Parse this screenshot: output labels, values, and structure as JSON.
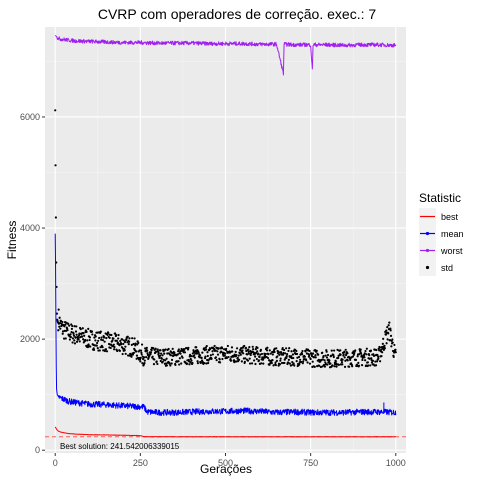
{
  "chart_data": {
    "type": "line",
    "title": "CVRP com operadores de correção. exec.: 7",
    "xlabel": "Gerações",
    "ylabel": "Fitness",
    "xlim": [
      -30,
      1030
    ],
    "ylim": [
      -50,
      7620
    ],
    "x_ticks": [
      0,
      250,
      500,
      750,
      1000
    ],
    "x_tick_labels": [
      "0",
      "250",
      "500",
      "750",
      "1000"
    ],
    "y_ticks": [
      0,
      2000,
      4000,
      6000
    ],
    "y_tick_labels": [
      "0",
      "2000",
      "4000",
      "6000"
    ],
    "grid": true,
    "legend": {
      "title": "Statistic",
      "position": "right",
      "entries": [
        {
          "label": "best",
          "color": "#ff0000",
          "shape": "line"
        },
        {
          "label": "mean",
          "color": "#0000ff",
          "shape": "line-point"
        },
        {
          "label": "worst",
          "color": "#a020f0",
          "shape": "line-point"
        },
        {
          "label": "std",
          "color": "#000000",
          "shape": "point"
        }
      ]
    },
    "annotation": "Best solution: 241.542006339015",
    "reference_line": {
      "y": 241.542006339015,
      "color": "#ff0000",
      "style": "dashed"
    },
    "series": [
      {
        "name": "best",
        "color": "#ff0000",
        "x": [
          0,
          5,
          10,
          20,
          40,
          60,
          100,
          150,
          200,
          250,
          260,
          300,
          400,
          500,
          600,
          700,
          800,
          900,
          1000
        ],
        "values": [
          420,
          370,
          340,
          320,
          300,
          290,
          280,
          275,
          270,
          262,
          245,
          243,
          242,
          242,
          242,
          242,
          242,
          242,
          242
        ]
      },
      {
        "name": "mean",
        "color": "#0000ff",
        "x": [
          0,
          1,
          2,
          3,
          4,
          6,
          10,
          20,
          40,
          60,
          100,
          150,
          200,
          230,
          260,
          270,
          300,
          350,
          400,
          450,
          500,
          550,
          600,
          650,
          700,
          750,
          800,
          850,
          900,
          950,
          1000
        ],
        "values": [
          3900,
          3300,
          2300,
          1500,
          1100,
          1000,
          960,
          930,
          880,
          860,
          830,
          820,
          800,
          790,
          780,
          690,
          680,
          680,
          690,
          700,
          700,
          710,
          700,
          680,
          690,
          680,
          680,
          680,
          690,
          690,
          680
        ]
      },
      {
        "name": "worst",
        "color": "#a020f0",
        "x": [
          0,
          10,
          30,
          60,
          100,
          150,
          200,
          250,
          300,
          350,
          400,
          450,
          500,
          550,
          600,
          650,
          670,
          672,
          700,
          750,
          755,
          757,
          800,
          850,
          900,
          950,
          1000
        ],
        "values": [
          7470,
          7410,
          7390,
          7370,
          7360,
          7350,
          7340,
          7340,
          7330,
          7330,
          7330,
          7320,
          7320,
          7320,
          7310,
          7310,
          6780,
          7310,
          7300,
          7300,
          6840,
          7300,
          7300,
          7290,
          7300,
          7300,
          7290
        ]
      },
      {
        "name": "std",
        "color": "#000000",
        "x": [
          0,
          1,
          2,
          3,
          4,
          5,
          6,
          8,
          10,
          15,
          20,
          30,
          50,
          75,
          100,
          150,
          200,
          230,
          260,
          300,
          350,
          400,
          450,
          500,
          550,
          600,
          650,
          700,
          750,
          800,
          850,
          900,
          950,
          980,
          1000
        ],
        "values": [
          6120,
          5130,
          4190,
          3380,
          2940,
          2460,
          2350,
          2300,
          2380,
          2250,
          2200,
          2150,
          2100,
          2050,
          2000,
          1950,
          1900,
          1850,
          1700,
          1680,
          1680,
          1700,
          1720,
          1740,
          1720,
          1700,
          1680,
          1680,
          1660,
          1650,
          1660,
          1670,
          1680,
          2180,
          1650
        ]
      }
    ]
  }
}
